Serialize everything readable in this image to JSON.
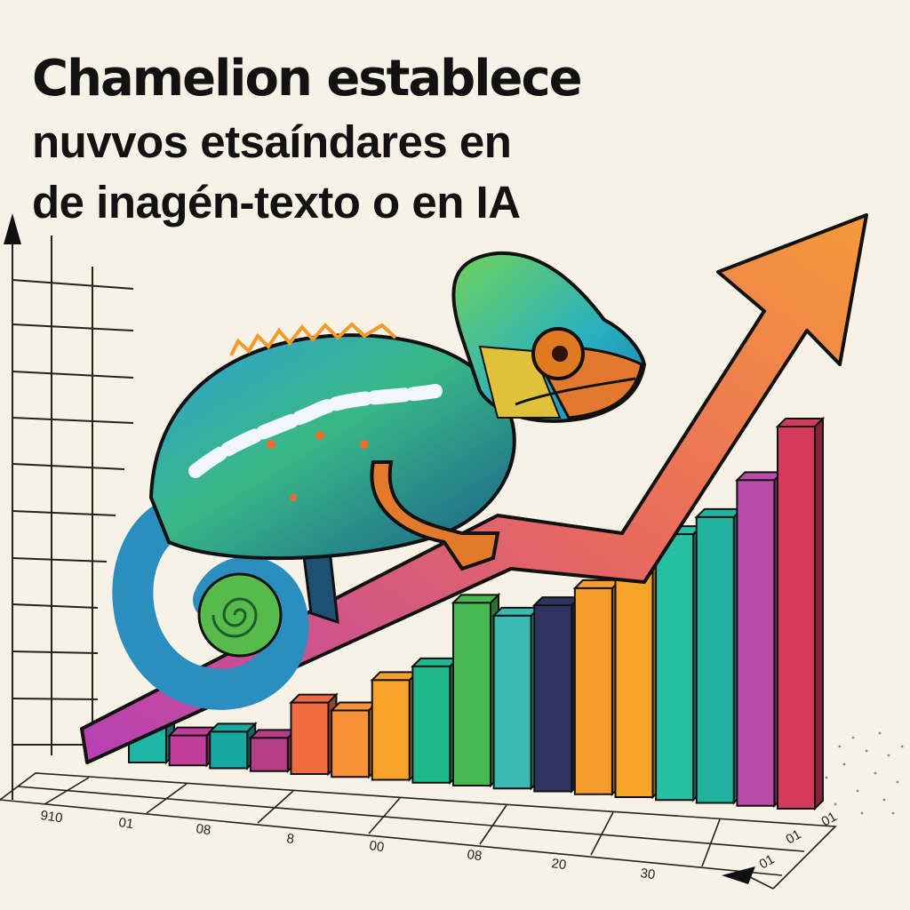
{
  "headline": {
    "line1": "Chamelion establece",
    "line2": "nuvvos etsaíndares en",
    "line3": "de inagén-texto o en IA"
  },
  "colors": {
    "background": "#f7f1e6",
    "arrow_start": "#b63fb5",
    "arrow_end": "#f59a3a",
    "outline": "#111111"
  },
  "chart_data": {
    "type": "bar",
    "trend": "up",
    "values": [
      2.2,
      1.8,
      2.2,
      2.0,
      4.3,
      4.0,
      6.0,
      7.0,
      11.0,
      10.4,
      11.2,
      12.4,
      14.6,
      16.0,
      17.2,
      19.6,
      23.0
    ],
    "colors": [
      "#1fb5a7",
      "#c23e9a",
      "#17a9a0",
      "#b53d83",
      "#f06a3f",
      "#f7913a",
      "#f7a22b",
      "#1fb78c",
      "#46b84f",
      "#39b9b2",
      "#2f3560",
      "#f69c2c",
      "#f7a428",
      "#27bfa4",
      "#1fb3a0",
      "#b84aa8",
      "#d33a5c"
    ],
    "x_tick_labels": [
      "910",
      "01",
      "08",
      "8",
      "00",
      "08",
      "20",
      "30"
    ],
    "right_tick_labels": [
      "01",
      "01",
      "01"
    ],
    "grid": true
  }
}
